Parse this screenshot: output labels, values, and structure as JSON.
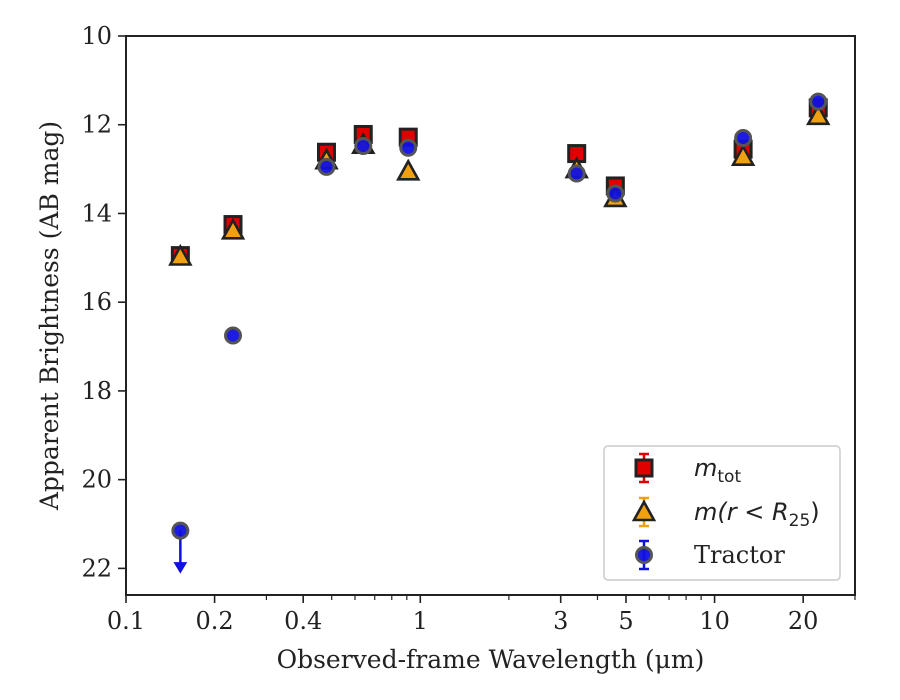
{
  "chart_data": {
    "type": "scatter",
    "xlabel": "Observed-frame Wavelength (μm)",
    "ylabel": "Apparent Brightness (AB mag)",
    "x_scale": "log",
    "xlim": [
      0.1,
      30
    ],
    "ylim": [
      22.6,
      10
    ],
    "y_inverted": true,
    "x_ticks": [
      {
        "value": 0.1,
        "label": "0.1"
      },
      {
        "value": 0.2,
        "label": "0.2"
      },
      {
        "value": 0.4,
        "label": "0.4"
      },
      {
        "value": 1,
        "label": "1"
      },
      {
        "value": 3,
        "label": "3"
      },
      {
        "value": 5,
        "label": "5"
      },
      {
        "value": 10,
        "label": "10"
      },
      {
        "value": 20,
        "label": "20"
      }
    ],
    "y_ticks": [
      10,
      12,
      14,
      16,
      18,
      20,
      22
    ],
    "grid": false,
    "legend_position": "lower-right",
    "series": [
      {
        "name": "m_tot",
        "legend_main": "m",
        "legend_sub": "tot",
        "marker": "square",
        "color": "#e00000",
        "edge": "#222222",
        "points": [
          {
            "x": 0.153,
            "y": 14.95
          },
          {
            "x": 0.231,
            "y": 14.25
          },
          {
            "x": 0.48,
            "y": 12.62
          },
          {
            "x": 0.64,
            "y": 12.22
          },
          {
            "x": 0.91,
            "y": 12.28
          },
          {
            "x": 3.4,
            "y": 12.65
          },
          {
            "x": 4.6,
            "y": 13.38
          },
          {
            "x": 12.5,
            "y": 12.55
          },
          {
            "x": 22.5,
            "y": 11.62
          }
        ]
      },
      {
        "name": "m(r < R_25)",
        "legend_main": "m(r < R",
        "legend_sub": "25",
        "legend_end": ")",
        "marker": "triangle",
        "color": "#f0a010",
        "edge": "#222222",
        "points": [
          {
            "x": 0.153,
            "y": 14.97
          },
          {
            "x": 0.231,
            "y": 14.38
          },
          {
            "x": 0.48,
            "y": 12.8
          },
          {
            "x": 0.64,
            "y": 12.45
          },
          {
            "x": 0.91,
            "y": 13.05
          },
          {
            "x": 3.4,
            "y": 13.0
          },
          {
            "x": 4.6,
            "y": 13.65
          },
          {
            "x": 12.5,
            "y": 12.72
          },
          {
            "x": 22.5,
            "y": 11.8
          }
        ]
      },
      {
        "name": "Tractor",
        "legend_main": "Tractor",
        "marker": "circle",
        "color": "#1010e0",
        "edge": "#555555",
        "points": [
          {
            "x": 0.153,
            "y": 21.15,
            "upper_limit": true
          },
          {
            "x": 0.231,
            "y": 16.75
          },
          {
            "x": 0.48,
            "y": 12.95
          },
          {
            "x": 0.64,
            "y": 12.48
          },
          {
            "x": 0.91,
            "y": 12.52
          },
          {
            "x": 3.4,
            "y": 13.1
          },
          {
            "x": 4.6,
            "y": 13.55
          },
          {
            "x": 12.5,
            "y": 12.3
          },
          {
            "x": 22.5,
            "y": 11.48
          }
        ]
      }
    ]
  }
}
